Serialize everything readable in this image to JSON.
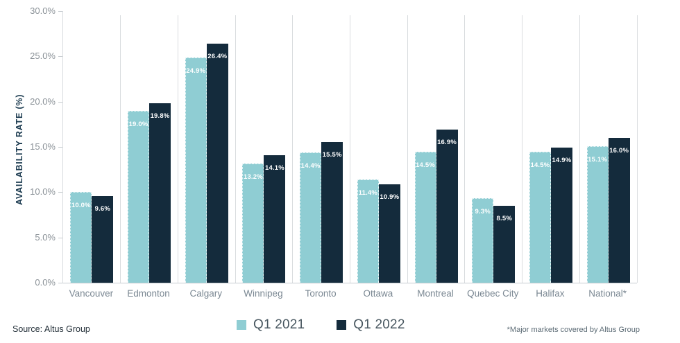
{
  "chart_data": {
    "type": "bar",
    "title": "",
    "xlabel": "",
    "ylabel": "AVAILABILITY RATE (%)",
    "ylim": [
      0,
      30
    ],
    "yticks": [
      30,
      25,
      20,
      15,
      10,
      5,
      0
    ],
    "ytick_labels": [
      "30.0%",
      "25.0%",
      "20.0%",
      "15.0%",
      "10.0%",
      "5.0%",
      "0.0%"
    ],
    "grid": "vertical-between-groups",
    "legend_position": "bottom-center",
    "categories": [
      "Vancouver",
      "Edmonton",
      "Calgary",
      "Winnipeg",
      "Toronto",
      "Ottawa",
      "Montreal",
      "Quebec City",
      "Halifax",
      "National*"
    ],
    "series": [
      {
        "name": "Q1 2021",
        "color": "#8FCDD3",
        "values": [
          10.0,
          19.0,
          24.9,
          13.2,
          14.4,
          11.4,
          14.5,
          9.3,
          14.5,
          15.1
        ]
      },
      {
        "name": "Q1 2022",
        "color": "#142B3C",
        "values": [
          9.6,
          19.8,
          26.4,
          14.1,
          15.5,
          10.9,
          16.9,
          8.5,
          14.9,
          16.0
        ]
      }
    ],
    "value_label_suffix": "%"
  },
  "footer": {
    "source": "Source: Altus Group",
    "footnote": "*Major markets covered by Altus Group"
  },
  "colors": {
    "q1_2021": "#8FCDD3",
    "q1_2022": "#142B3C",
    "gridline": "#D9DCDF",
    "axis_text": "#8B9298",
    "y_title": "#1D3C51"
  }
}
